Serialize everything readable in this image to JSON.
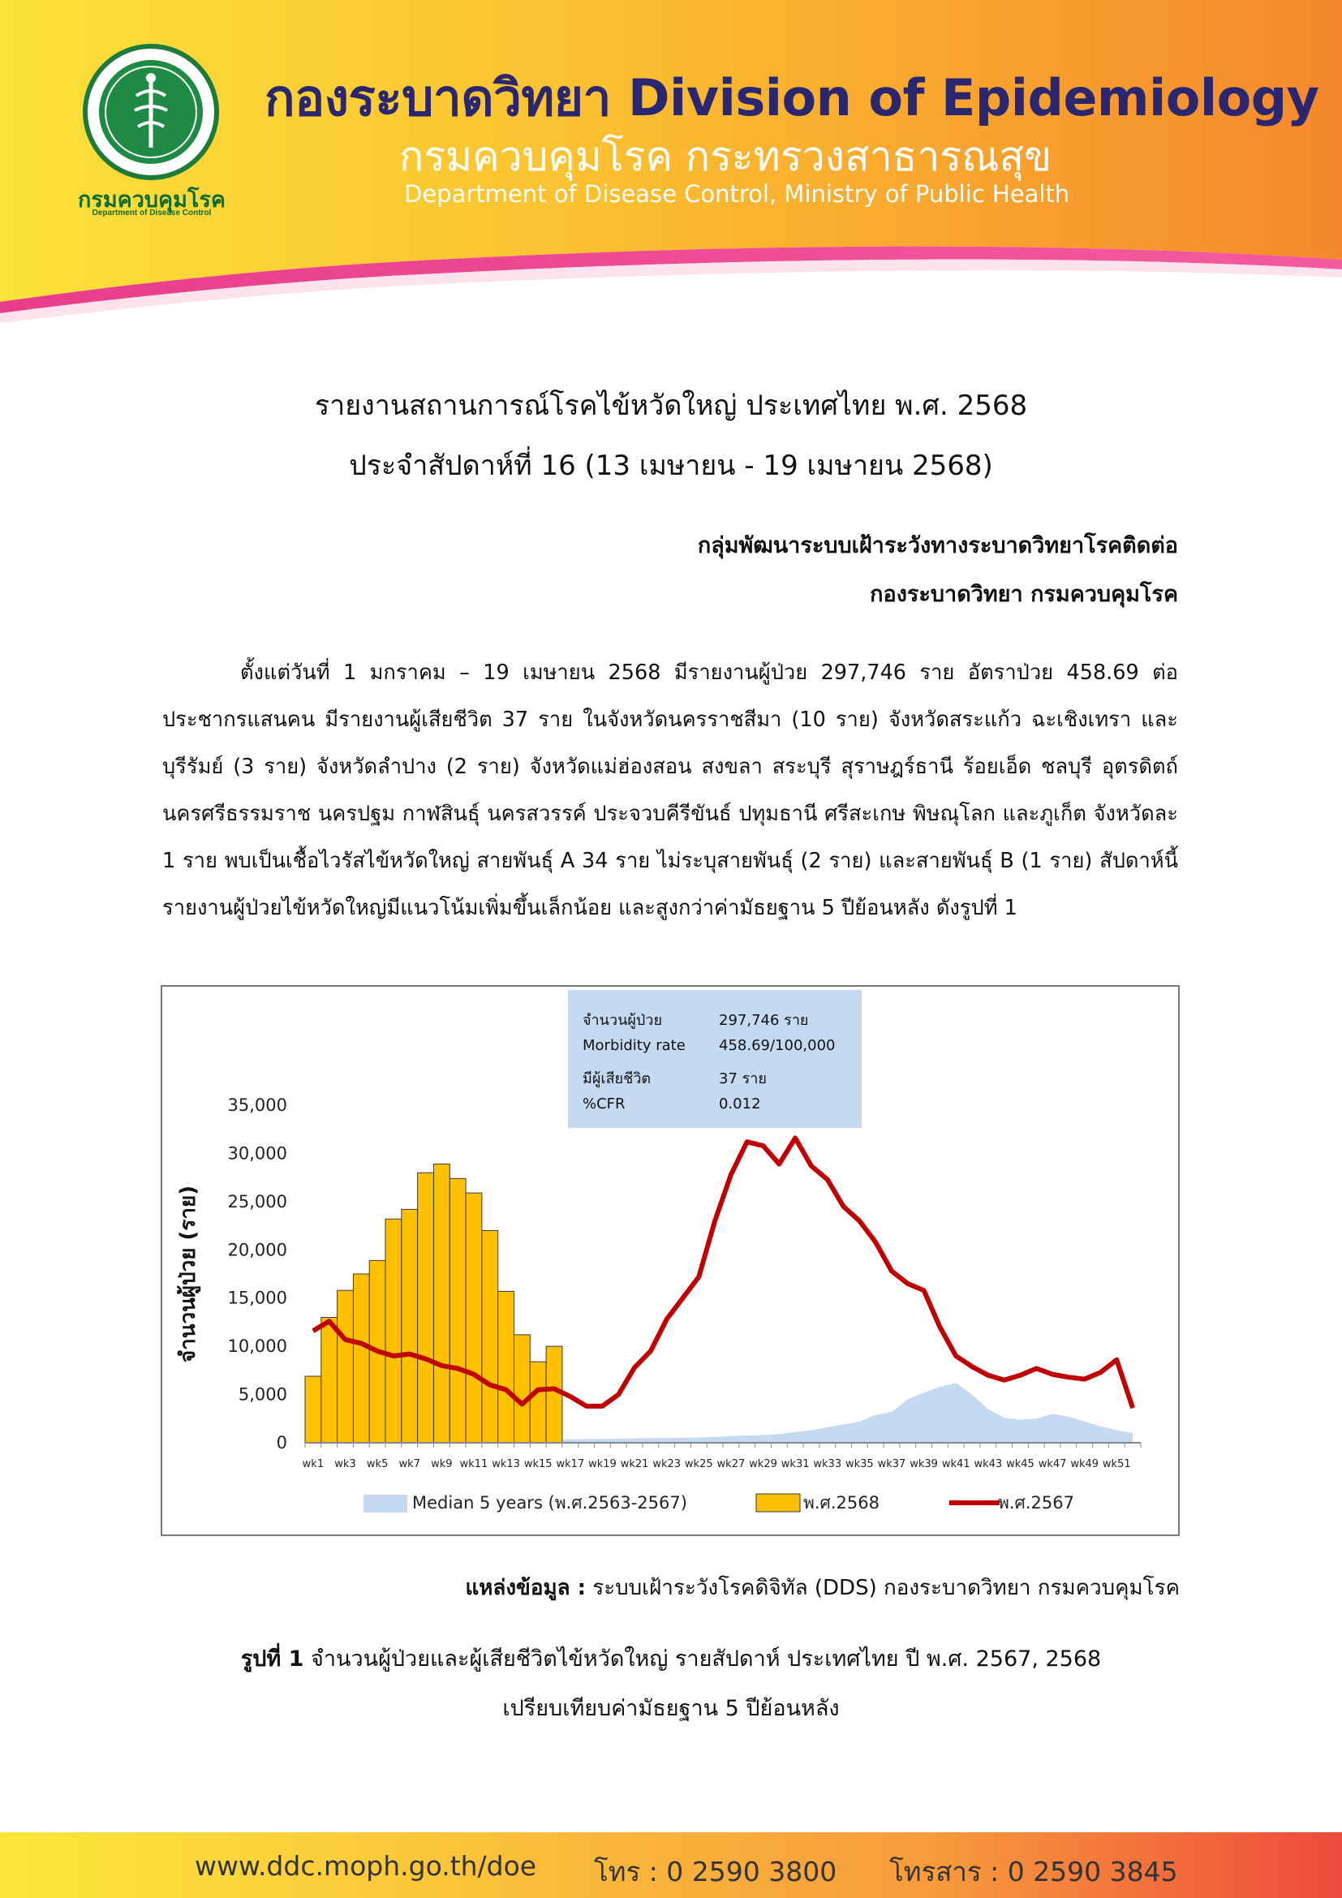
{
  "header": {
    "logo_name": "กรมควบคุมโรค",
    "logo_sub": "Department of Disease Control",
    "title": "กองระบาดวิทยา Division of Epidemiology",
    "thai_subtitle": "กรมควบคุมโรค กระทรวงสาธารณสุข",
    "eng_subtitle": "Department of Disease Control, Ministry of Public Health"
  },
  "report": {
    "title_line1": "รายงานสถานการณ์โรคไข้หวัดใหญ่ ประเทศไทย พ.ศ. 2568",
    "title_line2": "ประจำสัปดาห์ที่ 16 (13 เมษายน - 19 เมษายน 2568)",
    "org_line1": "กลุ่มพัฒนาระบบเฝ้าระวังทางระบาดวิทยาโรคติดต่อ",
    "org_line2": "กองระบาดวิทยา กรมควบคุมโรค",
    "body": "ตั้งแต่วันที่ 1 มกราคม – 19 เมษายน 2568 มีรายงานผู้ป่วย 297,746 ราย อัตราป่วย 458.69 ต่อประชากรแสนคน มีรายงานผู้เสียชีวิต 37 ราย ในจังหวัดนครราชสีมา (10 ราย) จังหวัดสระแก้ว ฉะเชิงเทรา และบุรีรัมย์ (3 ราย) จังหวัดลำปาง (2 ราย) จังหวัดแม่ฮ่องสอน สงขลา สระบุรี สุราษฎร์ธานี ร้อยเอ็ด ชลบุรี อุตรดิตถ์ นครศรีธรรมราช นครปฐม กาฬสินธุ์ นครสวรรค์ ประจวบคีรีขันธ์ ปทุมธานี ศรีสะเกษ พิษณุโลก และภูเก็ต จังหวัดละ 1 ราย พบเป็นเชื้อไวรัสไข้หวัดใหญ่ สายพันธุ์ A 34 ราย ไม่ระบุสายพันธุ์ (2 ราย) และสายพันธุ์ B (1 ราย) สัปดาห์นี้รายงานผู้ป่วยไข้หวัดใหญ่มีแนวโน้มเพิ่มขึ้นเล็กน้อย และสูงกว่าค่ามัธยฐาน 5 ปีย้อนหลัง ดังรูปที่ 1"
  },
  "infobox": {
    "rows": [
      {
        "label": "จำนวนผู้ป่วย",
        "value": "297,746 ราย"
      },
      {
        "label": "Morbidity rate",
        "value": "458.69/100,000"
      },
      {
        "label": "มีผู้เสียชีวิต",
        "value": " 37 ราย"
      },
      {
        "label": "%CFR",
        "value": "0.012"
      }
    ]
  },
  "chart_data": {
    "type": "bar",
    "ylabel": "จำนวนผู้ป่วย (ราย)",
    "ylim": [
      0,
      35000
    ],
    "yticks": [
      "0",
      "5,000",
      "10,000",
      "15,000",
      "20,000",
      "25,000",
      "30,000",
      "35,000"
    ],
    "x_tick_labels": [
      "wk1",
      "wk3",
      "wk5",
      "wk7",
      "wk9",
      "wk11",
      "wk13",
      "wk15",
      "wk17",
      "wk19",
      "wk21",
      "wk23",
      "wk25",
      "wk27",
      "wk29",
      "wk31",
      "wk33",
      "wk35",
      "wk37",
      "wk39",
      "wk41",
      "wk43",
      "wk45",
      "wk47",
      "wk49",
      "wk51"
    ],
    "colors": {
      "median": "#c5d9f1",
      "y2568": "#ffc000",
      "y2567": "#c00000"
    },
    "series": [
      {
        "name": "Median 5 years (พ.ศ.2563-2567)",
        "type": "area",
        "values": [
          200,
          220,
          240,
          250,
          260,
          270,
          280,
          290,
          300,
          300,
          300,
          310,
          320,
          330,
          340,
          350,
          360,
          380,
          400,
          420,
          450,
          480,
          500,
          520,
          550,
          600,
          700,
          750,
          800,
          900,
          1100,
          1300,
          1600,
          1900,
          2200,
          2900,
          3200,
          4500,
          5200,
          5800,
          6200,
          5000,
          3500,
          2600,
          2400,
          2500,
          3000,
          2700,
          2200,
          1700,
          1300,
          1000
        ]
      },
      {
        "name": "พ.ศ.2568",
        "type": "bar",
        "values": [
          6900,
          13000,
          15800,
          17500,
          18900,
          23200,
          24200,
          28000,
          28900,
          27400,
          25900,
          22000,
          15700,
          11200,
          8400,
          10000
        ]
      },
      {
        "name": "พ.ศ.2567",
        "type": "line",
        "values": [
          11600,
          12600,
          10700,
          10300,
          9500,
          9000,
          9200,
          8700,
          8000,
          7700,
          7100,
          6000,
          5500,
          4000,
          5500,
          5600,
          4800,
          3800,
          3800,
          5000,
          7800,
          9500,
          12800,
          15000,
          17200,
          23000,
          27800,
          31200,
          30800,
          28900,
          31600,
          28700,
          27300,
          24500,
          23000,
          20800,
          17800,
          16500,
          15800,
          12000,
          9000,
          7900,
          7000,
          6500,
          7000,
          7700,
          7100,
          6800,
          6600,
          7300,
          8600,
          3600
        ]
      }
    ],
    "legend": [
      "Median 5 years (พ.ศ.2563-2567)",
      "พ.ศ.2568",
      "พ.ศ.2567"
    ],
    "legend_position": "bottom"
  },
  "source": {
    "label": "แหล่งข้อมูล :",
    "text": "ระบบเฝ้าระวังโรคดิจิทัล (DDS) กองระบาดวิทยา กรมควบคุมโรค"
  },
  "caption": {
    "label": "รูปที่ 1",
    "line1": "จำนวนผู้ป่วยและผู้เสียชีวิตไข้หวัดใหญ่ รายสัปดาห์ ประเทศไทย ปี พ.ศ. 2567, 2568",
    "line2": "เปรียบเทียบค่ามัธยฐาน 5 ปีย้อนหลัง"
  },
  "footer": {
    "website": "www.ddc.moph.go.th/doe",
    "phone": "โทร : 0 2590 3800",
    "fax": "โทรสาร : 0 2590 3845"
  }
}
